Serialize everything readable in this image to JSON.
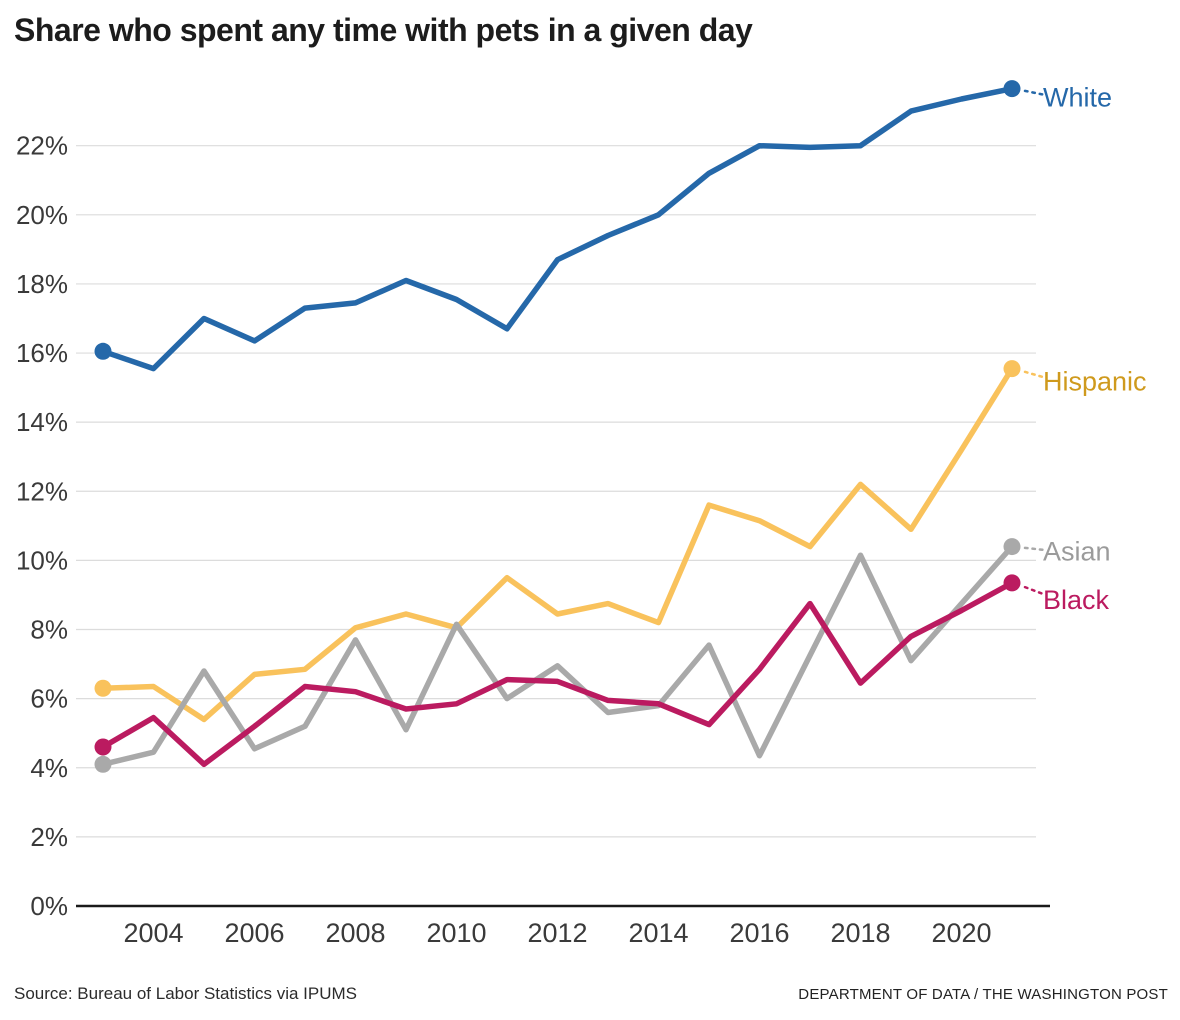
{
  "title": "Share who spent any time with pets in a given day",
  "source": "Source: Bureau of Labor Statistics via IPUMS",
  "credit": "DEPARTMENT OF DATA / THE WASHINGTON POST",
  "chart_data": {
    "type": "line",
    "title": "Share who spent any time with pets in a given day",
    "x": [
      2003,
      2004,
      2005,
      2006,
      2007,
      2008,
      2009,
      2010,
      2011,
      2012,
      2013,
      2014,
      2015,
      2016,
      2017,
      2018,
      2019,
      2020,
      2021
    ],
    "series": [
      {
        "name": "White",
        "color": "#2568a9",
        "label_color": "#2568a9",
        "values": [
          16.05,
          15.55,
          17.0,
          16.35,
          17.3,
          17.45,
          18.1,
          17.55,
          16.7,
          18.7,
          19.4,
          20.0,
          21.2,
          22.0,
          21.95,
          22.0,
          23.0,
          23.35,
          23.65
        ]
      },
      {
        "name": "Hispanic",
        "color": "#f9c25c",
        "label_color": "#cf9a1d",
        "values": [
          6.3,
          6.35,
          5.4,
          6.7,
          6.85,
          8.05,
          8.45,
          8.05,
          9.5,
          8.45,
          8.75,
          8.2,
          11.6,
          11.15,
          10.4,
          12.2,
          10.9,
          13.2,
          15.55
        ]
      },
      {
        "name": "Asian",
        "color": "#a9a9a9",
        "label_color": "#9b9b9b",
        "values": [
          4.1,
          4.45,
          6.8,
          4.55,
          5.2,
          7.7,
          5.1,
          8.15,
          6.0,
          6.95,
          5.6,
          5.8,
          7.55,
          4.35,
          7.25,
          10.15,
          7.1,
          8.75,
          10.4
        ]
      },
      {
        "name": "Black",
        "color": "#bb1b60",
        "label_color": "#bb1b60",
        "values": [
          4.6,
          5.45,
          4.1,
          5.2,
          6.35,
          6.2,
          5.7,
          5.85,
          6.55,
          6.5,
          5.95,
          5.85,
          5.25,
          6.85,
          8.75,
          6.45,
          7.8,
          8.55,
          9.35
        ]
      }
    ],
    "xlabel": "",
    "ylabel": "",
    "ylim": [
      0,
      24
    ],
    "yticks": [
      0,
      2,
      4,
      6,
      8,
      10,
      12,
      14,
      16,
      18,
      20,
      22
    ],
    "ytick_suffix": "%",
    "xticks": [
      2004,
      2006,
      2008,
      2010,
      2012,
      2014,
      2016,
      2018,
      2020
    ],
    "grid": true,
    "legend_position": "line-end-labels",
    "endpoint_dots": "first-and-last",
    "grid_color": "#dcdcdc",
    "axis_color": "#1a1a1a",
    "tick_label_color": "#3a3a3a"
  }
}
